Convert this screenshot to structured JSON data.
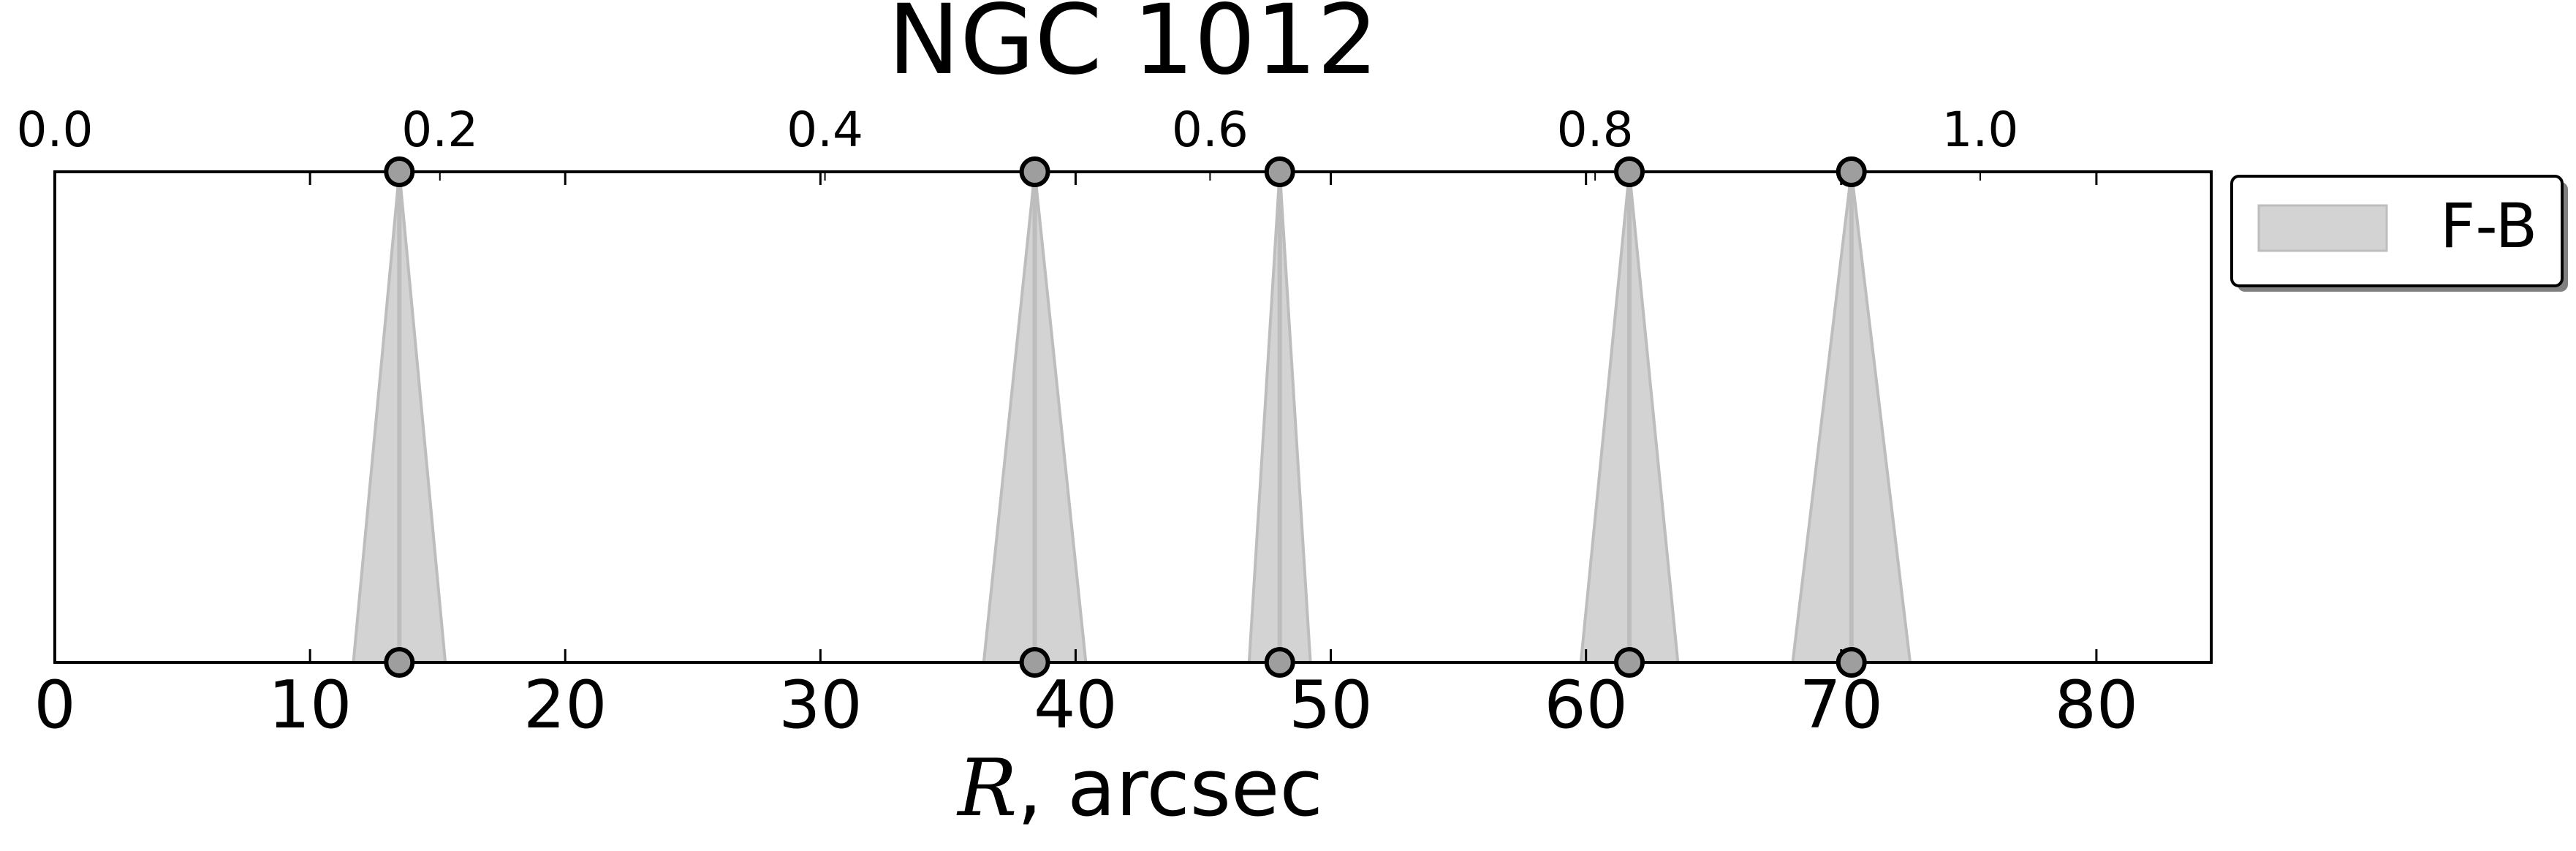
{
  "chart_data": {
    "type": "area",
    "title": "NGC 1012",
    "xlabel_italic": "R",
    "xlabel_rest": ", arcsec",
    "xlim": [
      0,
      84.5
    ],
    "xticks": [
      0,
      10,
      20,
      30,
      40,
      50,
      60,
      70,
      80
    ],
    "top_xlim": [
      0,
      1.12
    ],
    "top_xticks": [
      "0.0",
      "0.2",
      "0.4",
      "0.6",
      "0.8",
      "1.0"
    ],
    "top_xtick_values": [
      0.0,
      0.2,
      0.4,
      0.6,
      0.8,
      1.0
    ],
    "yticks_shown": false,
    "grid": false,
    "legend_placement": "outside-right-top",
    "series": [
      {
        "name": "F-B",
        "color": "#d3d3d3",
        "line_color": "#bdbdbd",
        "marker_edge": "#000000",
        "marker_face": "#9e9e9e",
        "features": [
          {
            "center": 13.5,
            "half_width": 1.8
          },
          {
            "center": 38.4,
            "half_width": 2.0
          },
          {
            "center": 48.0,
            "half_width": 1.2
          },
          {
            "center": 61.7,
            "half_width": 1.9
          },
          {
            "center": 70.4,
            "half_width": 2.3
          }
        ]
      }
    ]
  }
}
